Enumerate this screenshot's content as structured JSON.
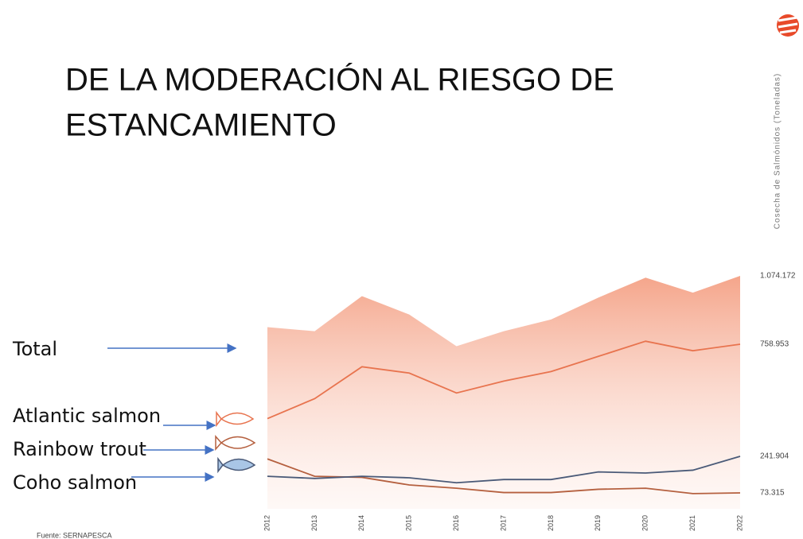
{
  "chart_data": {
    "type": "line",
    "title_lines": [
      "DE LA MODERACIÓN  AL RIESGO DE",
      "ESTANCAMIENTO"
    ],
    "y_axis_label": "Cosecha de Salmónidos (Toneladas)",
    "source": "Fuente: SERNAPESCA",
    "categories": [
      "2012",
      "2013",
      "2014",
      "2015",
      "2016",
      "2017",
      "2018",
      "2019",
      "2020",
      "2021",
      "2022"
    ],
    "ylim": [
      0,
      1100000
    ],
    "series": [
      {
        "name": "Total",
        "kind": "area",
        "color": "#f4a084",
        "values": [
          838000,
          819000,
          981000,
          896000,
          750000,
          819000,
          873000,
          974000,
          1066000,
          997000,
          1074172
        ],
        "value_labels": [
          null,
          null,
          null,
          null,
          null,
          null,
          null,
          null,
          null,
          null,
          "1.074.172"
        ]
      },
      {
        "name": "Atlantic salmon",
        "kind": "line",
        "color": "#e8744f",
        "values": [
          416000,
          508000,
          655000,
          626000,
          534000,
          589000,
          633000,
          703000,
          773000,
          729000,
          758953
        ],
        "value_labels": [
          null,
          null,
          null,
          null,
          null,
          null,
          null,
          null,
          null,
          null,
          "758.953"
        ]
      },
      {
        "name": "Rainbow trout",
        "kind": "line",
        "color": "#b5603f",
        "values": [
          230000,
          150000,
          145000,
          110000,
          95000,
          75000,
          75000,
          90000,
          95000,
          70000,
          73315
        ],
        "value_labels": [
          null,
          null,
          null,
          null,
          null,
          null,
          null,
          null,
          null,
          null,
          "73.315"
        ]
      },
      {
        "name": "Coho salmon",
        "kind": "line",
        "color": "#4a5a78",
        "values": [
          150000,
          140000,
          150000,
          143000,
          120000,
          135000,
          135000,
          170000,
          165000,
          178000,
          241904
        ],
        "value_labels": [
          null,
          null,
          null,
          null,
          null,
          null,
          null,
          null,
          null,
          null,
          "241.904"
        ]
      }
    ]
  }
}
